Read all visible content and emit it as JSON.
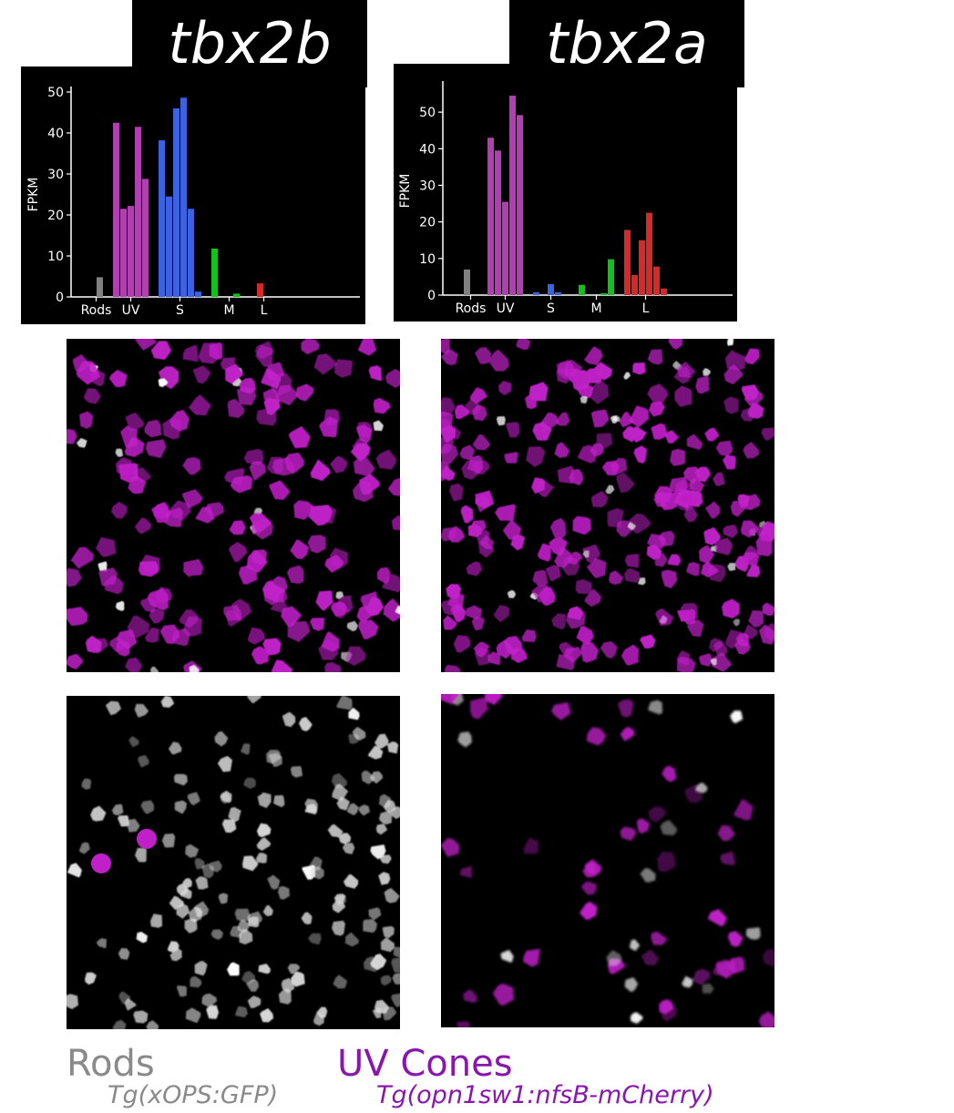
{
  "genes": {
    "left": "tbx2b",
    "right": "tbx2a"
  },
  "colors": {
    "rods": "#808080",
    "uv": "#b040b0",
    "s": "#3b63e0",
    "m": "#11c11c",
    "l": "#d42a2a",
    "magenta_signal": "#c020c8",
    "rods_label": "#8a8a8a",
    "uv_label": "#8a16b0"
  },
  "chart_data": [
    {
      "type": "bar",
      "title": "tbx2b",
      "ylabel": "FPKM",
      "xlabel": "",
      "ylim": [
        0,
        50
      ],
      "yticks": [
        0,
        10,
        20,
        30,
        40,
        50
      ],
      "groups": [
        {
          "label": "Rods",
          "color": "#808080",
          "values": [
            0,
            4.8
          ]
        },
        {
          "label": "UV",
          "color": "#b040b0",
          "values": [
            42.5,
            21.5,
            22.2,
            41.5,
            28.8
          ]
        },
        {
          "label": "S",
          "color": "#3b63e0",
          "values": [
            38.2,
            24.5,
            46,
            48.6,
            21.5,
            1.3
          ]
        },
        {
          "label": "M",
          "color": "#11c11c",
          "values": [
            11.8,
            0,
            0,
            0.8,
            0
          ]
        },
        {
          "label": "L",
          "color": "#d42a2a",
          "values": [
            3.3,
            0
          ]
        }
      ]
    },
    {
      "type": "bar",
      "title": "tbx2a",
      "ylabel": "FPKM",
      "xlabel": "",
      "ylim": [
        0,
        57
      ],
      "yticks": [
        0,
        10,
        20,
        30,
        40,
        50
      ],
      "groups": [
        {
          "label": "Rods",
          "color": "#808080",
          "values": [
            7,
            0
          ]
        },
        {
          "label": "UV",
          "color": "#b040b0",
          "values": [
            43,
            39.5,
            25.5,
            54.5,
            49.2
          ]
        },
        {
          "label": "S",
          "color": "#3b63e0",
          "values": [
            0.8,
            0,
            3,
            0.8,
            0
          ]
        },
        {
          "label": "M",
          "color": "#11c11c",
          "values": [
            2.8,
            0,
            0,
            0.5,
            9.8
          ]
        },
        {
          "label": "L",
          "color": "#d42a2a",
          "values": [
            17.8,
            5.5,
            15,
            22.5,
            7.8,
            1.8
          ]
        }
      ]
    }
  ],
  "legend": {
    "rods": {
      "label": "Rods",
      "line": "Tg(xOPS:GFP)"
    },
    "uv": {
      "label": "UV Cones",
      "line": "Tg(opn1sw1:nfsB-mCherry)"
    }
  }
}
